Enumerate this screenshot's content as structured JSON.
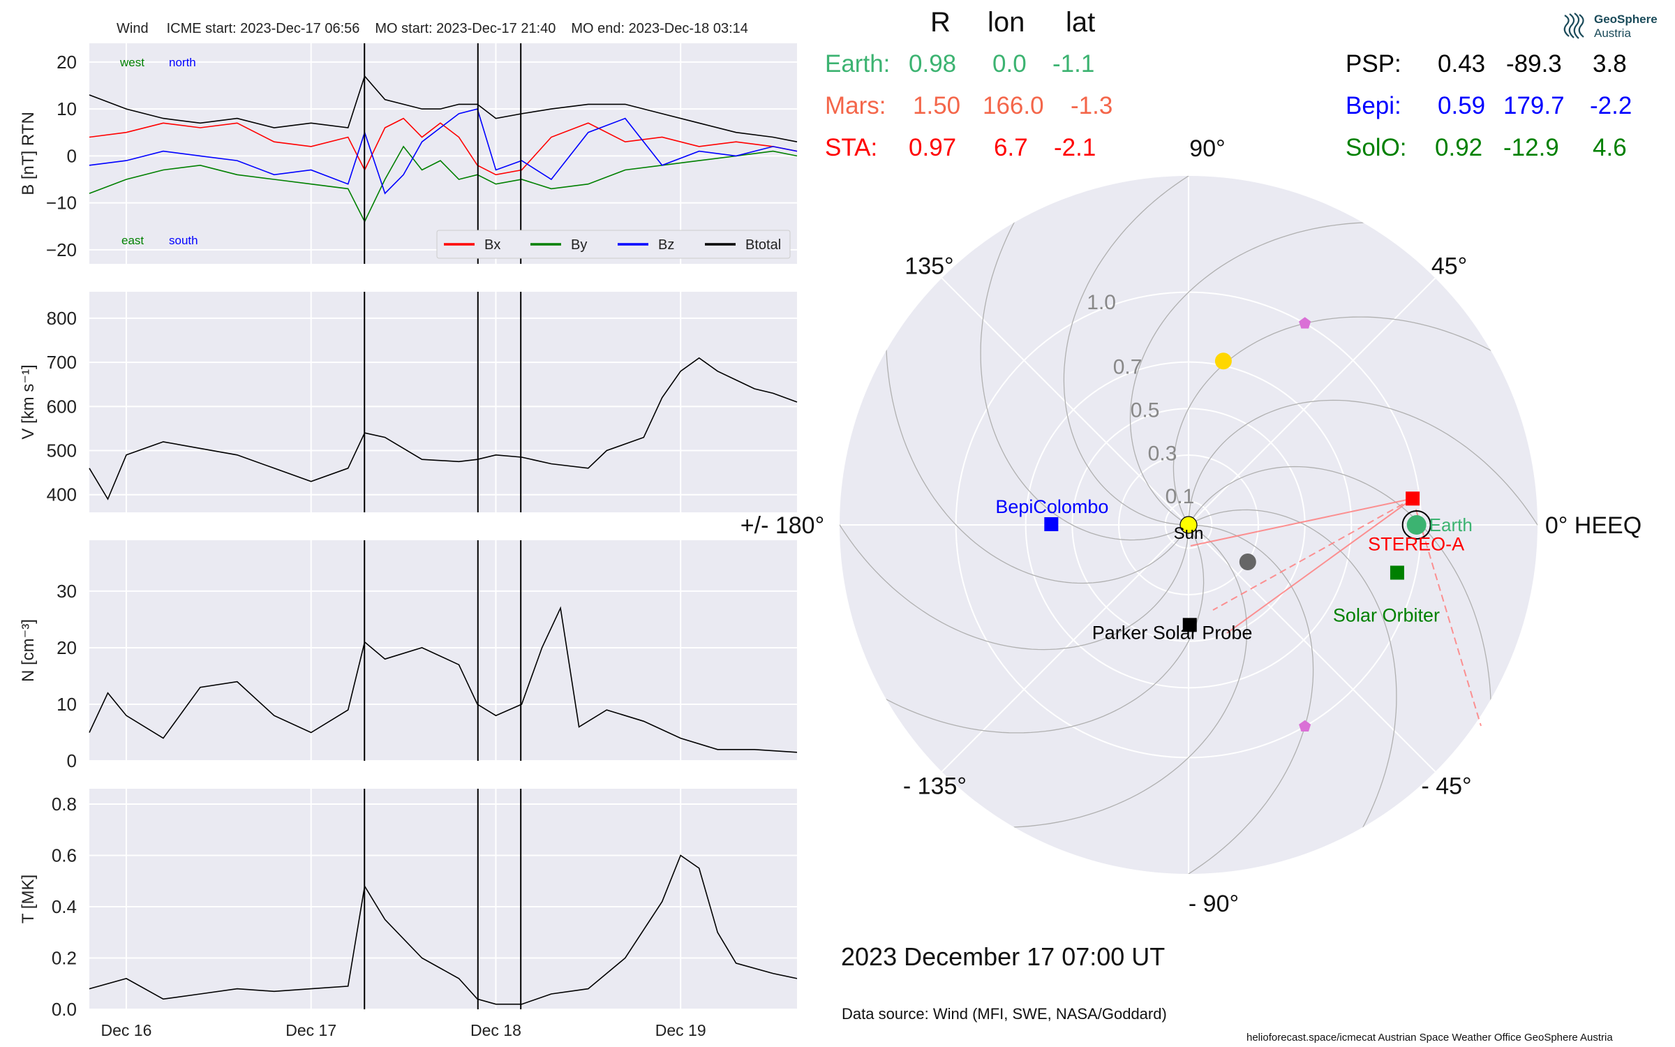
{
  "header": {
    "event": "Wind",
    "icme_start": "ICME start: 2023-Dec-17 06:56",
    "mo_start": "MO start: 2023-Dec-17 21:40",
    "mo_end": "MO end: 2023-Dec-18 03:14"
  },
  "table": {
    "col_r": "R",
    "col_lon": "lon",
    "col_lat": "lat",
    "earth": {
      "label": "Earth:",
      "r": "0.98",
      "lon": "0.0",
      "lat": "-1.1",
      "color": "#3cb371"
    },
    "mars": {
      "label": "Mars:",
      "r": "1.50",
      "lon": "166.0",
      "lat": "-1.3",
      "color": "#f4664a"
    },
    "sta": {
      "label": "STA:",
      "r": "0.97",
      "lon": "6.7",
      "lat": "-2.1",
      "color": "#ff0000"
    },
    "psp": {
      "label": "PSP:",
      "r": "0.43",
      "lon": "-89.3",
      "lat": "3.8",
      "color": "#000000"
    },
    "bepi": {
      "label": "Bepi:",
      "r": "0.59",
      "lon": "179.7",
      "lat": "-2.2",
      "color": "#0000ff"
    },
    "solo": {
      "label": "SolO:",
      "r": "0.92",
      "lon": "-12.9",
      "lat": "4.6",
      "color": "#008000"
    }
  },
  "logo": {
    "line1": "GeoSphere",
    "line2": "Austria"
  },
  "date_string": "2023 December 17  07:00 UT",
  "data_source": "Data source: Wind (MFI, SWE, NASA/Goddard)",
  "footer": "helioforecast.space/icmecat   Austrian Space Weather Office   GeoSphere Austria",
  "chart_data": [
    {
      "type": "line",
      "panel": "magnetic field",
      "ylabel": "B [nT] RTN",
      "ylim": [
        -23,
        24
      ],
      "yticks": [
        "20",
        "10",
        "0",
        "−10",
        "−20"
      ],
      "ytick_values": [
        20,
        10,
        0,
        -10,
        -20
      ],
      "xticks": [
        "Dec 16",
        "Dec 17",
        "Dec 18",
        "Dec 19"
      ],
      "xlim_days": [
        15.8,
        19.63
      ],
      "xtick_days": [
        16,
        17,
        18,
        19
      ],
      "event_lines_days": [
        17.289,
        17.903,
        18.135
      ],
      "annotations": {
        "west": "west",
        "north": "north",
        "east": "east",
        "south": "south"
      },
      "legend": [
        "Bx",
        "By",
        "Bz",
        "Btotal"
      ],
      "series": [
        {
          "name": "Bx",
          "color": "#ff0000",
          "x": [
            15.8,
            16.0,
            16.2,
            16.4,
            16.6,
            16.8,
            17.0,
            17.2,
            17.29,
            17.4,
            17.5,
            17.6,
            17.7,
            17.8,
            17.9,
            18.0,
            18.14,
            18.3,
            18.5,
            18.7,
            18.9,
            19.1,
            19.3,
            19.5,
            19.63
          ],
          "y": [
            4,
            5,
            7,
            6,
            7,
            3,
            2,
            4,
            -3,
            6,
            8,
            4,
            7,
            4,
            -2,
            -4,
            -3,
            4,
            7,
            3,
            4,
            2,
            3,
            2,
            1
          ]
        },
        {
          "name": "By",
          "color": "#008000",
          "x": [
            15.8,
            16.0,
            16.2,
            16.4,
            16.6,
            16.8,
            17.0,
            17.2,
            17.29,
            17.4,
            17.5,
            17.6,
            17.7,
            17.8,
            17.9,
            18.0,
            18.14,
            18.3,
            18.5,
            18.7,
            18.9,
            19.1,
            19.3,
            19.5,
            19.63
          ],
          "y": [
            -8,
            -5,
            -3,
            -2,
            -4,
            -5,
            -6,
            -7,
            -14,
            -5,
            2,
            -3,
            -1,
            -5,
            -4,
            -6,
            -5,
            -7,
            -6,
            -3,
            -2,
            -1,
            0,
            1,
            0
          ]
        },
        {
          "name": "Bz",
          "color": "#0000ff",
          "x": [
            15.8,
            16.0,
            16.2,
            16.4,
            16.6,
            16.8,
            17.0,
            17.2,
            17.29,
            17.4,
            17.5,
            17.6,
            17.7,
            17.8,
            17.9,
            18.0,
            18.14,
            18.3,
            18.5,
            18.7,
            18.9,
            19.1,
            19.3,
            19.5,
            19.63
          ],
          "y": [
            -2,
            -1,
            1,
            0,
            -1,
            -4,
            -3,
            -6,
            5,
            -8,
            -4,
            3,
            6,
            9,
            10,
            -3,
            -1,
            -5,
            5,
            8,
            -2,
            1,
            0,
            2,
            1
          ]
        },
        {
          "name": "Btotal",
          "color": "#000000",
          "x": [
            15.8,
            16.0,
            16.2,
            16.4,
            16.6,
            16.8,
            17.0,
            17.2,
            17.29,
            17.4,
            17.5,
            17.6,
            17.7,
            17.8,
            17.9,
            18.0,
            18.14,
            18.3,
            18.5,
            18.7,
            18.9,
            19.1,
            19.3,
            19.5,
            19.63
          ],
          "y": [
            13,
            10,
            8,
            7,
            8,
            6,
            7,
            6,
            17,
            12,
            11,
            10,
            10,
            11,
            11,
            8,
            9,
            10,
            11,
            11,
            9,
            7,
            5,
            4,
            3
          ]
        }
      ]
    },
    {
      "type": "line",
      "panel": "speed",
      "ylabel": "V [km s⁻¹]",
      "ylim": [
        360,
        860
      ],
      "yticks": [
        "800",
        "700",
        "600",
        "500",
        "400"
      ],
      "ytick_values": [
        800,
        700,
        600,
        500,
        400
      ],
      "series": [
        {
          "name": "",
          "color": "#000000",
          "x": [
            15.8,
            15.9,
            16.0,
            16.2,
            16.4,
            16.6,
            16.8,
            17.0,
            17.2,
            17.29,
            17.4,
            17.6,
            17.8,
            17.9,
            18.0,
            18.14,
            18.3,
            18.5,
            18.6,
            18.8,
            18.9,
            19.0,
            19.1,
            19.2,
            19.3,
            19.4,
            19.5,
            19.63
          ],
          "y": [
            460,
            390,
            490,
            520,
            505,
            490,
            460,
            430,
            460,
            540,
            530,
            480,
            475,
            480,
            490,
            485,
            470,
            460,
            500,
            530,
            620,
            680,
            710,
            680,
            660,
            640,
            630,
            610
          ]
        }
      ]
    },
    {
      "type": "line",
      "panel": "density",
      "ylabel": "N [cm⁻³]",
      "ylim": [
        0,
        39
      ],
      "yticks": [
        "30",
        "20",
        "10",
        "0"
      ],
      "ytick_values": [
        30,
        20,
        10,
        0
      ],
      "series": [
        {
          "name": "",
          "color": "#000000",
          "x": [
            15.8,
            15.9,
            16.0,
            16.2,
            16.4,
            16.6,
            16.8,
            17.0,
            17.2,
            17.29,
            17.4,
            17.6,
            17.8,
            17.9,
            18.0,
            18.14,
            18.25,
            18.35,
            18.45,
            18.6,
            18.8,
            19.0,
            19.2,
            19.4,
            19.63
          ],
          "y": [
            5,
            12,
            8,
            4,
            13,
            14,
            8,
            5,
            9,
            21,
            18,
            20,
            17,
            10,
            8,
            10,
            20,
            27,
            6,
            9,
            7,
            4,
            2,
            2,
            1.5
          ]
        }
      ]
    },
    {
      "type": "line",
      "panel": "temperature",
      "ylabel": "T [MK]",
      "ylim": [
        0,
        0.86
      ],
      "yticks": [
        "0.8",
        "0.6",
        "0.4",
        "0.2",
        "0.0"
      ],
      "ytick_values": [
        0.8,
        0.6,
        0.4,
        0.2,
        0.0
      ],
      "series": [
        {
          "name": "",
          "color": "#000000",
          "x": [
            15.8,
            16.0,
            16.2,
            16.4,
            16.6,
            16.8,
            17.0,
            17.2,
            17.29,
            17.4,
            17.6,
            17.8,
            17.9,
            18.0,
            18.14,
            18.3,
            18.5,
            18.7,
            18.9,
            19.0,
            19.1,
            19.2,
            19.3,
            19.5,
            19.63
          ],
          "y": [
            0.08,
            0.12,
            0.04,
            0.06,
            0.08,
            0.07,
            0.08,
            0.09,
            0.48,
            0.35,
            0.2,
            0.12,
            0.04,
            0.02,
            0.02,
            0.06,
            0.08,
            0.2,
            0.42,
            0.6,
            0.55,
            0.3,
            0.18,
            0.14,
            0.12
          ]
        }
      ]
    },
    {
      "type": "scatter",
      "panel": "polar position plot",
      "angle_labels": {
        "a0": "0° HEEQ",
        "a45": "45°",
        "a90": "90°",
        "a135": "135°",
        "a180": "+/- 180°",
        "am135": "- 135°",
        "am90": "- 90°",
        "am45": "- 45°"
      },
      "radial_ticks": [
        {
          "r": 0.1,
          "label": "0.1"
        },
        {
          "r": 0.3,
          "label": "0.3"
        },
        {
          "r": 0.5,
          "label": "0.5"
        },
        {
          "r": 0.7,
          "label": "0.7"
        },
        {
          "r": 1.0,
          "label": "1.0"
        }
      ],
      "rmax": 1.5,
      "bodies": [
        {
          "name": "Sun",
          "r": 0.0,
          "lon": 0,
          "color": "#ffff00",
          "marker": "circle",
          "label": "Sun"
        },
        {
          "name": "Earth",
          "r": 0.98,
          "lon": 0.0,
          "color": "#3cb371",
          "marker": "circle",
          "label": "Earth"
        },
        {
          "name": "STEREO-A",
          "r": 0.97,
          "lon": 6.7,
          "color": "#ff0000",
          "marker": "square",
          "label": "STEREO-A"
        },
        {
          "name": "BepiColombo",
          "r": 0.59,
          "lon": 179.7,
          "color": "#0000ff",
          "marker": "square",
          "label": "BepiColombo"
        },
        {
          "name": "Parker Solar Probe",
          "r": 0.43,
          "lon": -89.3,
          "color": "#000000",
          "marker": "square",
          "label": "Parker Solar Probe"
        },
        {
          "name": "Solar Orbiter",
          "r": 0.92,
          "lon": -12.9,
          "color": "#008000",
          "marker": "square",
          "label": "Solar Orbiter"
        },
        {
          "name": "Venus",
          "r": 0.72,
          "lon": 78,
          "color": "#ffd700",
          "marker": "circle",
          "label": ""
        },
        {
          "name": "Mercury",
          "r": 0.3,
          "lon": -32,
          "color": "#666666",
          "marker": "circle",
          "label": ""
        },
        {
          "name": "L4",
          "r": 1.0,
          "lon": 60,
          "color": "#da70d6",
          "marker": "pentagon",
          "label": ""
        },
        {
          "name": "L5",
          "r": 1.0,
          "lon": -60,
          "color": "#da70d6",
          "marker": "pentagon",
          "label": ""
        }
      ]
    }
  ]
}
